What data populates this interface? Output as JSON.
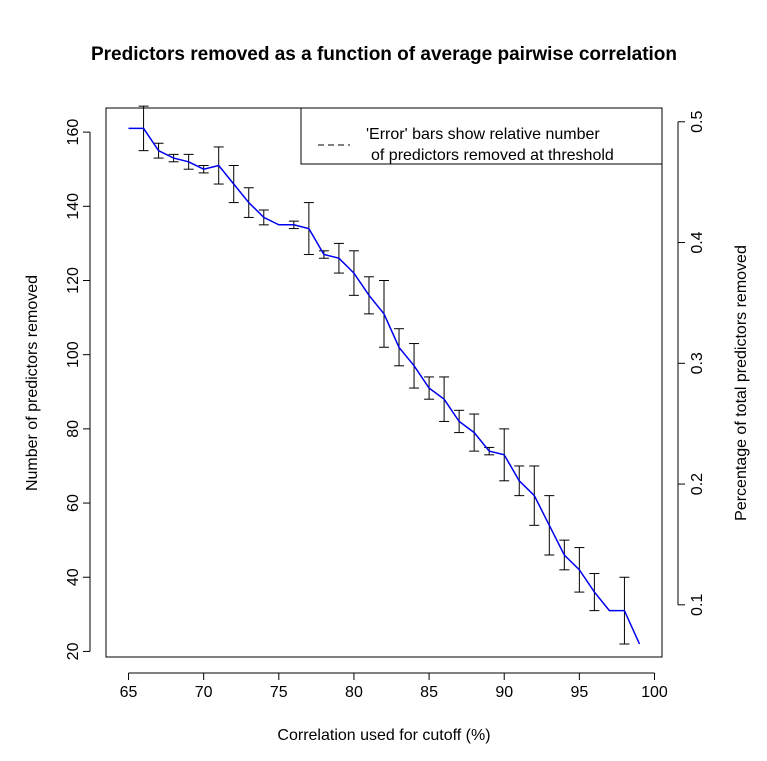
{
  "chart_data": {
    "type": "line",
    "title": "Predictors removed as a function of average pairwise correlation",
    "xlabel": "Correlation used for cutoff (%)",
    "ylabel": "Number of predictors removed",
    "y2label": "Percentage of total predictors removed",
    "xlim": [
      63.5,
      100.5
    ],
    "ylim": [
      18.5,
      166.5
    ],
    "y2lim": [
      0.0568,
      0.5114
    ],
    "x_ticks": [
      65,
      70,
      75,
      80,
      85,
      90,
      95,
      100
    ],
    "y_ticks": [
      20,
      40,
      60,
      80,
      100,
      120,
      140,
      160
    ],
    "y2_ticks": [
      0.1,
      0.2,
      0.3,
      0.4,
      0.5
    ],
    "legend": {
      "position": "top-right",
      "lines": [
        "'Error' bars show relative number",
        "of predictors removed at threshold"
      ]
    },
    "line_color": "#0000ee",
    "errorbar_color": "#000000",
    "series": [
      {
        "x": [
          65,
          66,
          67,
          68,
          69,
          70,
          71,
          72,
          73,
          74,
          75,
          76,
          77,
          78,
          79,
          80,
          81,
          82,
          83,
          84,
          85,
          86,
          87,
          88,
          89,
          90,
          91,
          92,
          93,
          94,
          95,
          96,
          97,
          98,
          99
        ],
        "values": [
          161,
          161,
          155,
          153,
          152,
          150,
          151,
          146,
          141,
          137,
          135,
          135,
          134,
          127,
          126,
          122,
          116,
          111,
          102,
          97,
          91,
          88,
          82,
          79,
          74,
          73,
          66,
          62,
          54,
          46,
          42,
          36,
          31,
          31,
          22
        ]
      }
    ],
    "error_bars": [
      {
        "x": 66,
        "low": 155,
        "high": 167
      },
      {
        "x": 67,
        "low": 153,
        "high": 157
      },
      {
        "x": 68,
        "low": 152,
        "high": 154
      },
      {
        "x": 69,
        "low": 150,
        "high": 154
      },
      {
        "x": 70,
        "low": 149,
        "high": 151
      },
      {
        "x": 71,
        "low": 146,
        "high": 156
      },
      {
        "x": 72,
        "low": 141,
        "high": 151
      },
      {
        "x": 73,
        "low": 137,
        "high": 145
      },
      {
        "x": 74,
        "low": 135,
        "high": 139
      },
      {
        "x": 76,
        "low": 134,
        "high": 136
      },
      {
        "x": 77,
        "low": 127,
        "high": 141
      },
      {
        "x": 78,
        "low": 126,
        "high": 128
      },
      {
        "x": 79,
        "low": 122,
        "high": 130
      },
      {
        "x": 80,
        "low": 116,
        "high": 128
      },
      {
        "x": 81,
        "low": 111,
        "high": 121
      },
      {
        "x": 82,
        "low": 102,
        "high": 120
      },
      {
        "x": 83,
        "low": 97,
        "high": 107
      },
      {
        "x": 84,
        "low": 91,
        "high": 103
      },
      {
        "x": 85,
        "low": 88,
        "high": 94
      },
      {
        "x": 86,
        "low": 82,
        "high": 94
      },
      {
        "x": 87,
        "low": 79,
        "high": 85
      },
      {
        "x": 88,
        "low": 74,
        "high": 84
      },
      {
        "x": 89,
        "low": 73,
        "high": 75
      },
      {
        "x": 90,
        "low": 66,
        "high": 80
      },
      {
        "x": 91,
        "low": 62,
        "high": 70
      },
      {
        "x": 92,
        "low": 54,
        "high": 70
      },
      {
        "x": 93,
        "low": 46,
        "high": 62
      },
      {
        "x": 94,
        "low": 42,
        "high": 50
      },
      {
        "x": 95,
        "low": 36,
        "high": 48
      },
      {
        "x": 96,
        "low": 31,
        "high": 41
      },
      {
        "x": 98,
        "low": 22,
        "high": 40
      }
    ]
  }
}
